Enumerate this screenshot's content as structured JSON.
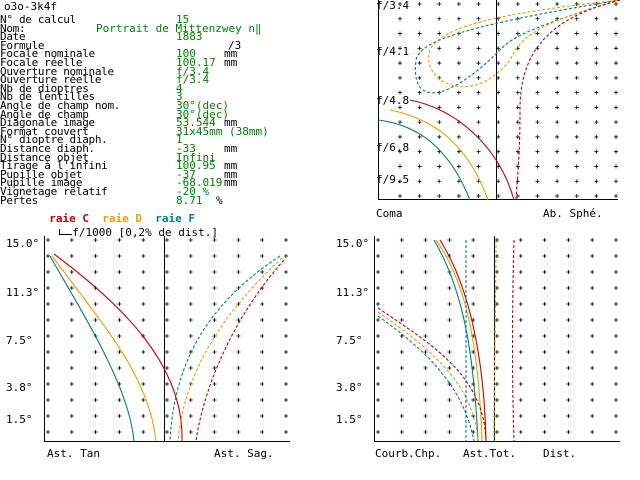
{
  "header": "o3o-3k4f",
  "params": [
    {
      "label": "N° de calcul",
      "value": "15",
      "unit": ""
    },
    {
      "label": "Nom:",
      "value": "Portrait de Mittenzwey n‖",
      "unit": ""
    },
    {
      "label": "Date",
      "value": "1883",
      "unit": ""
    },
    {
      "label": "Formule",
      "value": "",
      "unit": "/3"
    },
    {
      "label": "Focale nominale",
      "value": "100",
      "unit": "mm"
    },
    {
      "label": "Focale réelle",
      "value": "100.17",
      "unit": "mm"
    },
    {
      "label": "Ouverture nominale",
      "value": "f/3.4",
      "unit": ""
    },
    {
      "label": "Ouverture réelle",
      "value": "f/3.4",
      "unit": ""
    },
    {
      "label": "Nb de dioptres",
      "value": "4",
      "unit": ""
    },
    {
      "label": "Nb de lentilles",
      "value": "3",
      "unit": ""
    },
    {
      "label": "Angle de champ nom.",
      "value": "30°(dec)",
      "unit": ""
    },
    {
      "label": "Angle de champ",
      "value": "30°(dec)",
      "unit": ""
    },
    {
      "label": "Diagonale image",
      "value": "53.544",
      "unit": "mm"
    },
    {
      "label": "Format couvert",
      "value": "31x45mm (38mm)",
      "unit": ""
    },
    {
      "label": "N° dioptre diaph.",
      "value": "1",
      "unit": ""
    },
    {
      "label": "Distance diaph.",
      "value": "-33",
      "unit": "mm"
    },
    {
      "label": "Distance objet",
      "value": "Infini",
      "unit": ""
    },
    {
      "label": "Tirage à l'infini",
      "value": "100.95",
      "unit": "mm"
    },
    {
      "label": "Pupille objet",
      "value": "-37",
      "unit": "mm"
    },
    {
      "label": "Pupille image",
      "value": "-68.019",
      "unit": "mm"
    },
    {
      "label": "Vignetage relatif",
      "value": "-20 %",
      "unit": ""
    },
    {
      "label": "Pertes",
      "value": "8.71",
      "unit": "%"
    }
  ],
  "legend": {
    "c": "raie C",
    "d": "raie D",
    "f": "raie F",
    "scale": "f/1000 [0,2% de dist.]"
  },
  "colors": {
    "C": "#c00000",
    "D": "#e8a000",
    "F": "#008080"
  },
  "panels": {
    "coma": {
      "ylabels": [
        "f/3.4",
        "f/4.1",
        "f/4.8",
        "f/6.8",
        "f/9.5"
      ],
      "left_tag": "Coma",
      "right_tag": "Ab. Sphé."
    },
    "astig": {
      "ylabels": [
        "15.0°",
        "11.3°",
        "7.5°",
        "3.8°",
        "1.5°"
      ],
      "left_tag": "Ast. Tan",
      "right_tag": "Ast. Sag."
    },
    "field": {
      "ylabels": [
        "15.0°",
        "11.3°",
        "7.5°",
        "3.8°",
        "1.5°"
      ],
      "tag1": "Courb.Chp.",
      "tag2": "Ast.Tot.",
      "tag3": "Dist."
    }
  }
}
